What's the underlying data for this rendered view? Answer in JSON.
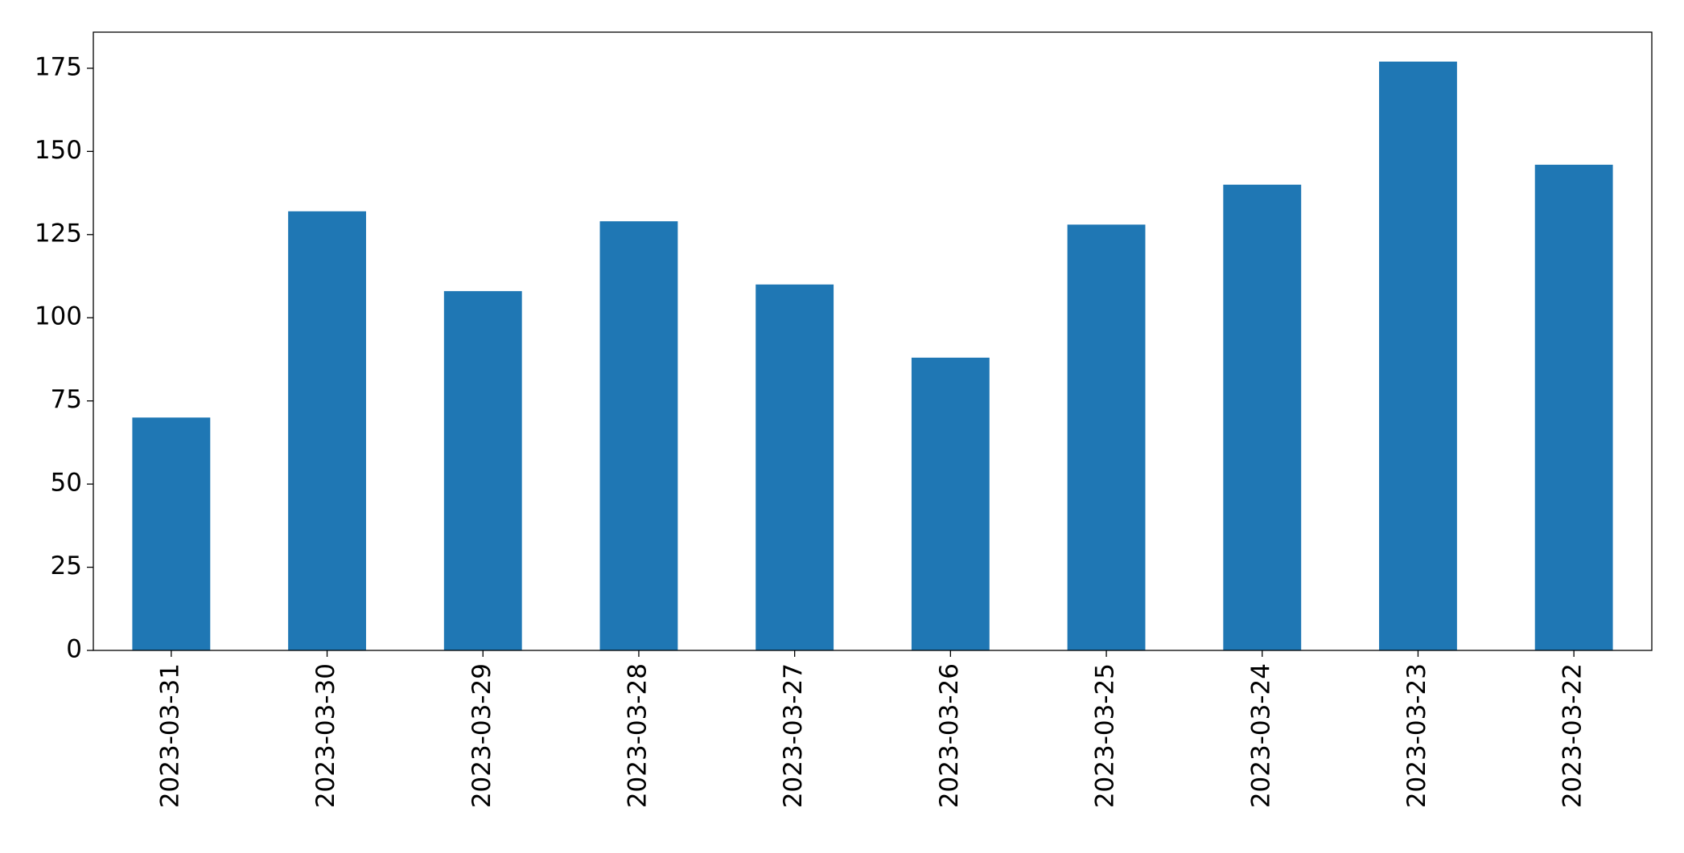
{
  "chart_data": {
    "type": "bar",
    "categories": [
      "2023-03-31",
      "2023-03-30",
      "2023-03-29",
      "2023-03-28",
      "2023-03-27",
      "2023-03-26",
      "2023-03-25",
      "2023-03-24",
      "2023-03-23",
      "2023-03-22"
    ],
    "values": [
      70,
      132,
      108,
      129,
      110,
      88,
      128,
      140,
      177,
      146
    ],
    "color": "#1f77b4",
    "ylim": [
      0,
      185.85
    ],
    "yticks": [
      0,
      25,
      50,
      75,
      100,
      125,
      150,
      175
    ],
    "grid": false
  }
}
